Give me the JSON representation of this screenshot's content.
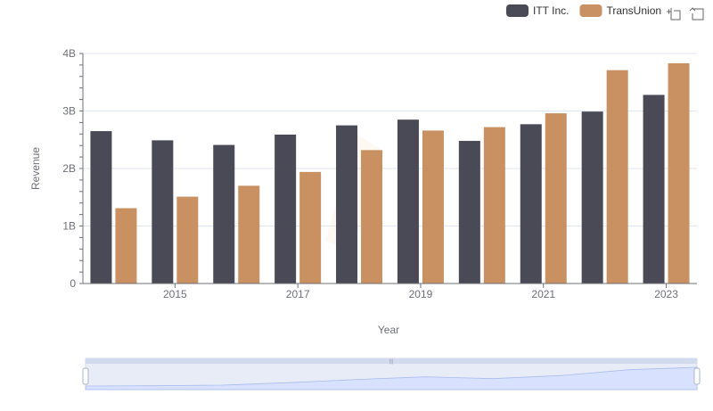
{
  "chart_data": {
    "type": "bar",
    "categories": [
      "2014",
      "2015",
      "2016",
      "2017",
      "2018",
      "2019",
      "2020",
      "2021",
      "2022",
      "2023"
    ],
    "x_tick_labels": [
      "2015",
      "2017",
      "2019",
      "2021",
      "2023"
    ],
    "series": [
      {
        "name": "ITT Inc.",
        "color": "#4a4a57",
        "values": [
          2.65,
          2.49,
          2.41,
          2.59,
          2.75,
          2.85,
          2.48,
          2.77,
          2.99,
          3.28
        ]
      },
      {
        "name": "TransUnion",
        "color": "#c99161",
        "values": [
          1.31,
          1.51,
          1.7,
          1.94,
          2.32,
          2.66,
          2.72,
          2.96,
          3.71,
          3.83
        ]
      }
    ],
    "y_ticks": [
      0,
      1,
      2,
      3,
      4
    ],
    "y_tick_labels": [
      "0",
      "1B",
      "2B",
      "3B",
      "4B"
    ],
    "ylim": [
      0,
      4
    ],
    "xlabel": "Year",
    "ylabel": "Revenue",
    "legend_position": "top-right",
    "grid": true,
    "toolbox_icons": [
      "zoom-icon",
      "restore-icon"
    ],
    "data_zoom": {
      "range_start": 0,
      "range_end": 100
    }
  }
}
